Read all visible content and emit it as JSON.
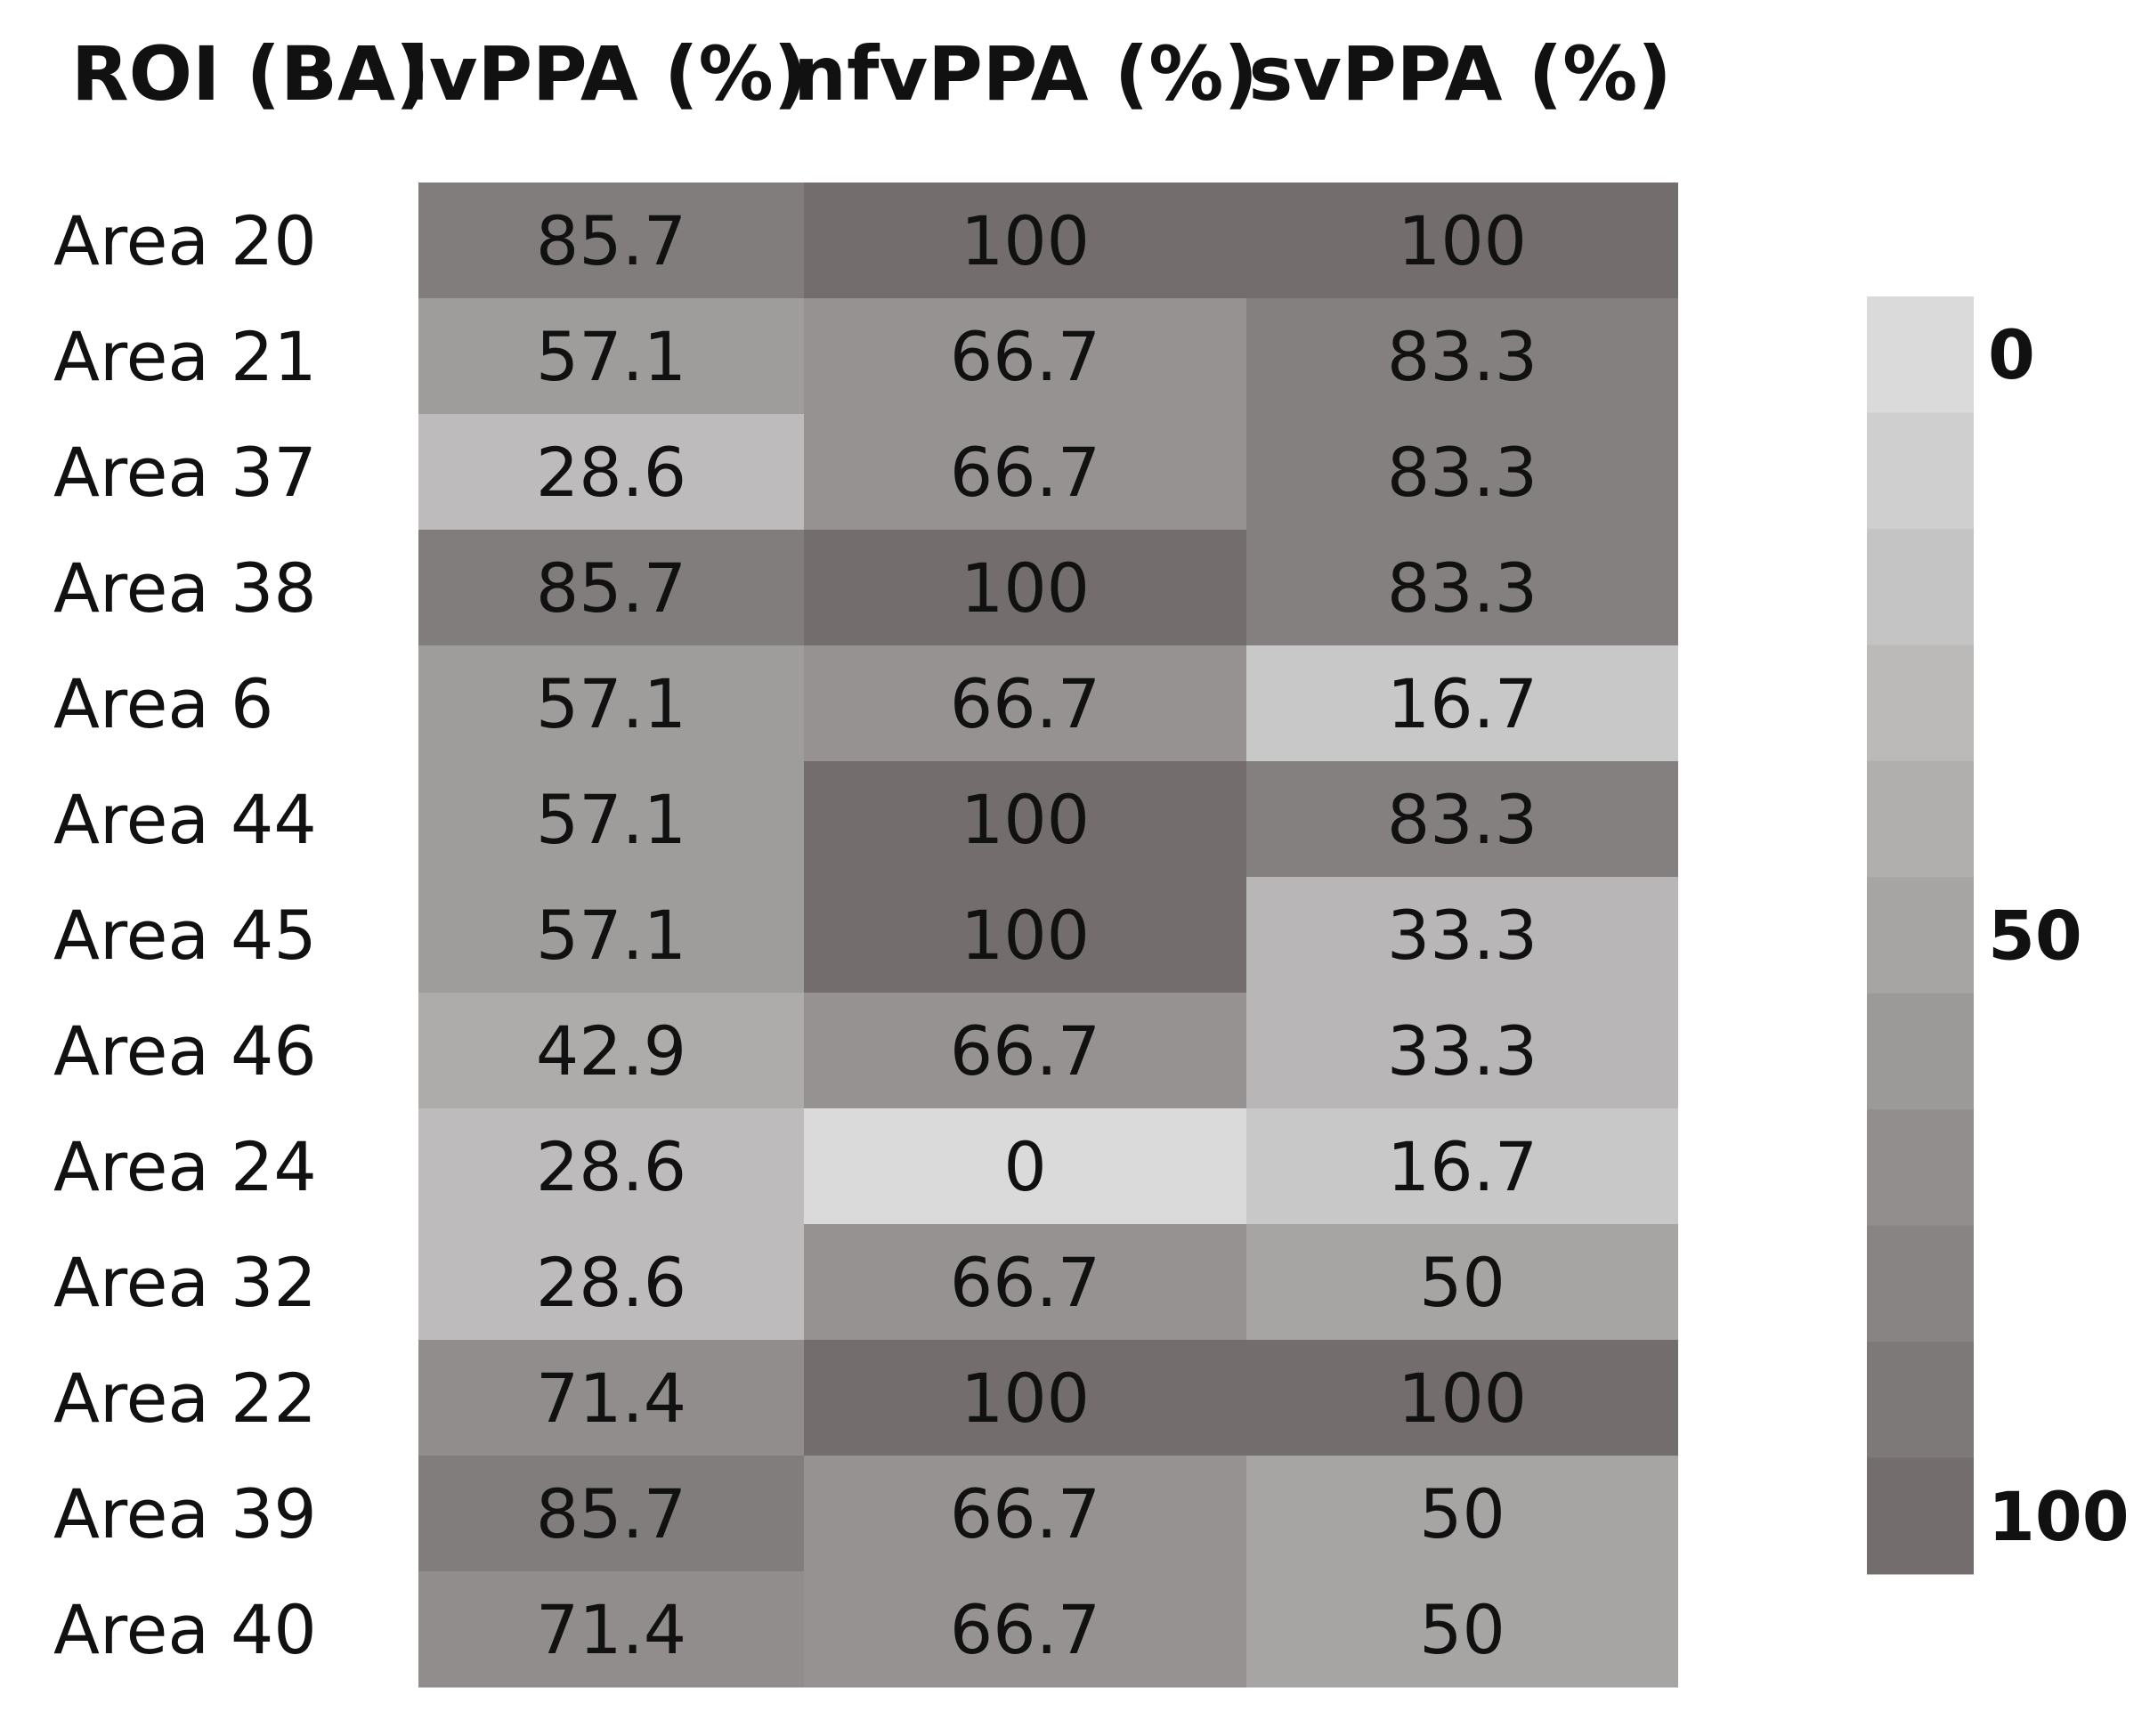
{
  "chart_data": {
    "type": "heatmap",
    "title": "",
    "row_header": "ROI (BA)",
    "columns": [
      "lvPPA (%)",
      "nfvPPA (%)",
      "svPPA (%)"
    ],
    "rows": [
      "Area 20",
      "Area 21",
      "Area 37",
      "Area 38",
      "Area 6",
      "Area 44",
      "Area 45",
      "Area 46",
      "Area 24",
      "Area 32",
      "Area 22",
      "Area 39",
      "Area 40"
    ],
    "values": [
      [
        85.7,
        100,
        100
      ],
      [
        57.1,
        66.7,
        83.3
      ],
      [
        28.6,
        66.7,
        83.3
      ],
      [
        85.7,
        100,
        83.3
      ],
      [
        57.1,
        66.7,
        16.7
      ],
      [
        57.1,
        100,
        83.3
      ],
      [
        57.1,
        100,
        33.3
      ],
      [
        42.9,
        66.7,
        33.3
      ],
      [
        28.6,
        0,
        16.7
      ],
      [
        28.6,
        66.7,
        50
      ],
      [
        71.4,
        100,
        100
      ],
      [
        85.7,
        66.7,
        50
      ],
      [
        71.4,
        66.7,
        50
      ]
    ],
    "value_labels": [
      [
        "85.7",
        "100",
        "100"
      ],
      [
        "57.1",
        "66.7",
        "83.3"
      ],
      [
        "28.6",
        "66.7",
        "83.3"
      ],
      [
        "85.7",
        "100",
        "83.3"
      ],
      [
        "57.1",
        "66.7",
        "16.7"
      ],
      [
        "57.1",
        "100",
        "83.3"
      ],
      [
        "57.1",
        "100",
        "33.3"
      ],
      [
        "42.9",
        "66.7",
        "33.3"
      ],
      [
        "28.6",
        "0",
        "16.7"
      ],
      [
        "28.6",
        "66.7",
        "50"
      ],
      [
        "71.4",
        "100",
        "100"
      ],
      [
        "85.7",
        "66.7",
        "50"
      ],
      [
        "71.4",
        "66.7",
        "50"
      ]
    ],
    "color_scale": {
      "min": 0,
      "max": 100,
      "min_color": "#dadada",
      "max_color": "#736e6d",
      "steps": 11,
      "tick_labels": [
        "0",
        "50",
        "100"
      ],
      "tick_values": [
        0,
        50,
        100
      ],
      "placement": "right"
    },
    "grid": false
  }
}
